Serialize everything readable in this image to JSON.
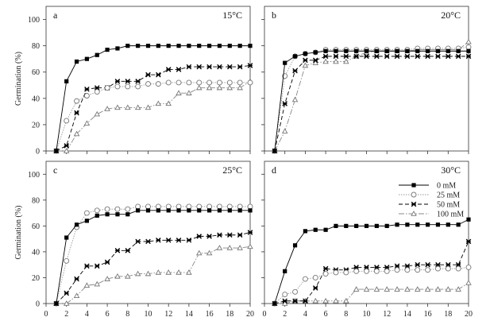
{
  "chart_data": {
    "type": "line",
    "ylabel": "Germination (%)",
    "xlabel": "",
    "xlim": [
      0,
      20
    ],
    "ylim": [
      0,
      110
    ],
    "xticks": [
      0,
      2,
      4,
      6,
      8,
      10,
      12,
      14,
      16,
      18,
      20
    ],
    "yticks": [
      0,
      20,
      40,
      60,
      80,
      100
    ],
    "x": [
      1,
      2,
      3,
      4,
      5,
      6,
      7,
      8,
      9,
      10,
      11,
      12,
      13,
      14,
      15,
      16,
      17,
      18,
      19,
      20
    ],
    "legend": {
      "location": "panel d, top-right",
      "entries": [
        "0 mM",
        "25 mM",
        "50 mM",
        "100 mM"
      ]
    },
    "panels": [
      {
        "label": "a",
        "temperature": "15°C",
        "series": [
          {
            "name": "0 mM",
            "values": [
              0,
              53,
              68,
              70,
              73,
              77,
              78,
              80,
              80,
              80,
              80,
              80,
              80,
              80,
              80,
              80,
              80,
              80,
              80,
              80
            ]
          },
          {
            "name": "25 mM",
            "values": [
              0,
              23,
              38,
              42,
              45,
              48,
              49,
              49,
              49,
              51,
              51,
              52,
              52,
              52,
              52,
              52,
              52,
              52,
              52,
              52
            ]
          },
          {
            "name": "50 mM",
            "values": [
              0,
              4,
              29,
              47,
              48,
              48,
              53,
              53,
              53,
              58,
              58,
              62,
              62,
              64,
              64,
              64,
              64,
              64,
              64,
              65
            ]
          },
          {
            "name": "100 mM",
            "values": [
              0,
              0,
              13,
              21,
              28,
              32,
              33,
              33,
              33,
              33,
              36,
              36,
              44,
              44,
              48,
              48,
              48,
              48,
              48,
              53
            ]
          }
        ]
      },
      {
        "label": "b",
        "temperature": "20°C",
        "series": [
          {
            "name": "0 mM",
            "values": [
              0,
              67,
              72,
              74,
              75,
              76,
              76,
              76,
              76,
              76,
              76,
              76,
              76,
              76,
              76,
              76,
              76,
              76,
              76,
              76
            ]
          },
          {
            "name": "25 mM",
            "values": [
              0,
              57,
              72,
              74,
              75,
              77,
              77,
              77,
              77,
              77,
              77,
              77,
              77,
              77,
              78,
              78,
              78,
              78,
              78,
              79
            ]
          },
          {
            "name": "50 mM",
            "values": [
              0,
              36,
              61,
              69,
              69,
              72,
              72,
              72,
              72,
              72,
              72,
              72,
              72,
              72,
              72,
              72,
              72,
              72,
              72,
              72
            ]
          },
          {
            "name": "100 mM",
            "values": [
              0,
              15,
              39,
              65,
              67,
              68,
              68,
              68,
              72,
              75,
              76,
              76,
              76,
              76,
              77,
              77,
              77,
              77,
              77,
              83
            ]
          }
        ]
      },
      {
        "label": "c",
        "temperature": "25°C",
        "series": [
          {
            "name": "0 mM",
            "values": [
              0,
              51,
              61,
              64,
              68,
              69,
              69,
              69,
              72,
              72,
              72,
              72,
              72,
              72,
              72,
              72,
              72,
              72,
              72,
              72
            ]
          },
          {
            "name": "25 mM",
            "values": [
              0,
              33,
              59,
              70,
              72,
              73,
              73,
              73,
              75,
              75,
              75,
              75,
              75,
              75,
              75,
              75,
              75,
              75,
              75,
              75
            ]
          },
          {
            "name": "50 mM",
            "values": [
              0,
              8,
              19,
              29,
              29,
              32,
              41,
              41,
              48,
              48,
              49,
              49,
              49,
              49,
              52,
              52,
              53,
              53,
              53,
              55
            ]
          },
          {
            "name": "100 mM",
            "values": [
              0,
              0,
              6,
              14,
              15,
              19,
              21,
              21,
              23,
              23,
              24,
              24,
              24,
              24,
              39,
              39,
              43,
              43,
              43,
              44
            ]
          }
        ]
      },
      {
        "label": "d",
        "temperature": "30°C",
        "series": [
          {
            "name": "0 mM",
            "values": [
              0,
              25,
              45,
              56,
              57,
              57,
              60,
              60,
              60,
              60,
              60,
              60,
              61,
              61,
              61,
              61,
              61,
              61,
              61,
              65
            ]
          },
          {
            "name": "25 mM",
            "values": [
              0,
              7,
              9,
              19,
              20,
              23,
              24,
              24,
              25,
              25,
              25,
              25,
              26,
              26,
              26,
              26,
              27,
              27,
              27,
              28
            ]
          },
          {
            "name": "50 mM",
            "values": [
              0,
              2,
              2,
              2,
              12,
              27,
              26,
              26,
              28,
              28,
              28,
              28,
              29,
              29,
              30,
              30,
              30,
              30,
              30,
              48
            ]
          },
          {
            "name": "100 mM",
            "values": [
              0,
              0,
              2,
              2,
              2,
              2,
              2,
              2,
              11,
              11,
              11,
              11,
              11,
              11,
              11,
              11,
              11,
              11,
              11,
              16
            ]
          }
        ]
      }
    ]
  }
}
